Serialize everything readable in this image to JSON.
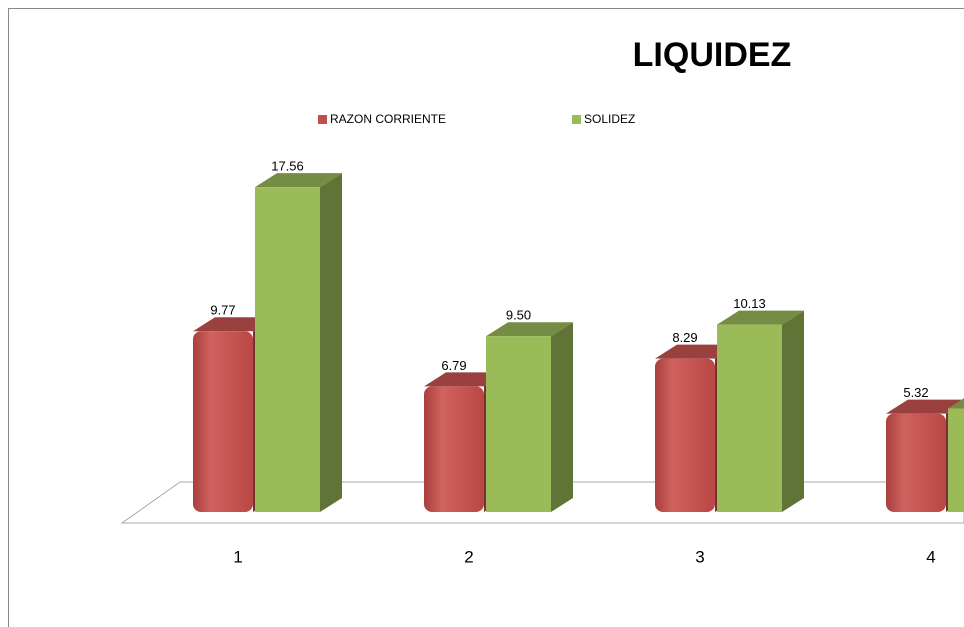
{
  "chart_data": {
    "type": "bar3d",
    "title": "LIQUIDEZ",
    "categories": [
      "1",
      "2",
      "3",
      "4"
    ],
    "series": [
      {
        "name": "RAZON CORRIENTE",
        "color": "#c0504d",
        "values": [
          9.77,
          6.79,
          8.29,
          5.32
        ],
        "value_labels": [
          "9.77",
          "6.79",
          "8.29",
          "5.32"
        ]
      },
      {
        "name": "SOLIDEZ",
        "color": "#9bbb59",
        "values": [
          17.56,
          9.5,
          10.13,
          5.6
        ],
        "value_labels": [
          "17.56",
          "9.50",
          "10.13",
          null
        ]
      }
    ],
    "legend": "top"
  }
}
